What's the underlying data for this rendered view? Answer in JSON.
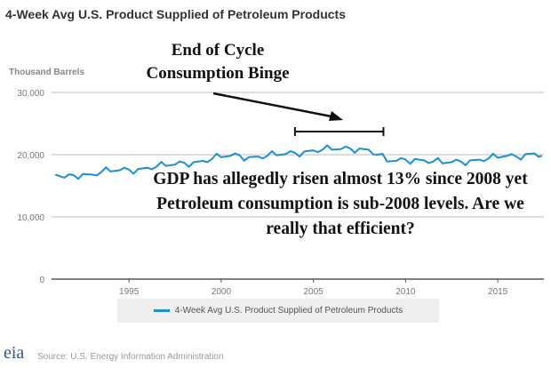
{
  "chart_data": {
    "type": "line",
    "title": "4-Week Avg U.S. Product Supplied of Petroleum Products",
    "ylabel": "Thousand Barrels",
    "xlim": [
      1990.8,
      2017.5
    ],
    "ylim": [
      0,
      30000
    ],
    "yticks": [
      0,
      10000,
      20000,
      30000
    ],
    "ytick_labels": [
      "0",
      "10,000",
      "20,000",
      "30,000"
    ],
    "xticks": [
      1995,
      2000,
      2005,
      2010,
      2015
    ],
    "xtick_labels": [
      "1995",
      "2000",
      "2005",
      "2010",
      "2015"
    ],
    "grid": true,
    "legend": "bottom",
    "color": "#1a8fd6",
    "series": [
      {
        "name": "4-Week Avg U.S. Product Supplied of Petroleum Products",
        "x": [
          1991,
          1991.5,
          1992,
          1992.5,
          1993,
          1993.5,
          1994,
          1994.5,
          1995,
          1995.5,
          1996,
          1996.5,
          1997,
          1997.5,
          1998,
          1998.5,
          1999,
          1999.5,
          2000,
          2000.5,
          2001,
          2001.5,
          2002,
          2002.5,
          2003,
          2003.5,
          2004,
          2004.5,
          2005,
          2005.5,
          2006,
          2006.5,
          2007,
          2007.5,
          2008,
          2008.5,
          2009,
          2009.5,
          2010,
          2010.5,
          2011,
          2011.5,
          2012,
          2012.5,
          2013,
          2013.5,
          2014,
          2014.5,
          2015,
          2015.5,
          2016,
          2016.5,
          2017,
          2017.4
        ],
        "y": [
          16800,
          16300,
          16700,
          16900,
          16800,
          17200,
          17300,
          17500,
          17600,
          17700,
          17900,
          18100,
          18200,
          18400,
          18700,
          18800,
          19000,
          19300,
          19600,
          19800,
          19900,
          19600,
          19700,
          19800,
          19900,
          20100,
          20300,
          20500,
          20700,
          20800,
          20800,
          20900,
          21000,
          21000,
          20800,
          20000,
          18900,
          19000,
          19200,
          19300,
          19100,
          18900,
          18600,
          18800,
          18900,
          19100,
          19200,
          19400,
          19500,
          19800,
          19700,
          20100,
          20200,
          19800
        ]
      }
    ],
    "annotations": {
      "binge": "End of Cycle Consumption Binge",
      "binge_line1": "End of Cycle",
      "binge_line2": "Consumption Binge",
      "binge_range": [
        2004,
        2008.8
      ],
      "gdp": "GDP has allegedly risen almost 13% since 2008 yet Petroleum consumption is sub-2008 levels. Are we really that efficient?"
    }
  },
  "footer": {
    "source": "Source: U.S. Energy Information Administration",
    "logo": "eia"
  }
}
